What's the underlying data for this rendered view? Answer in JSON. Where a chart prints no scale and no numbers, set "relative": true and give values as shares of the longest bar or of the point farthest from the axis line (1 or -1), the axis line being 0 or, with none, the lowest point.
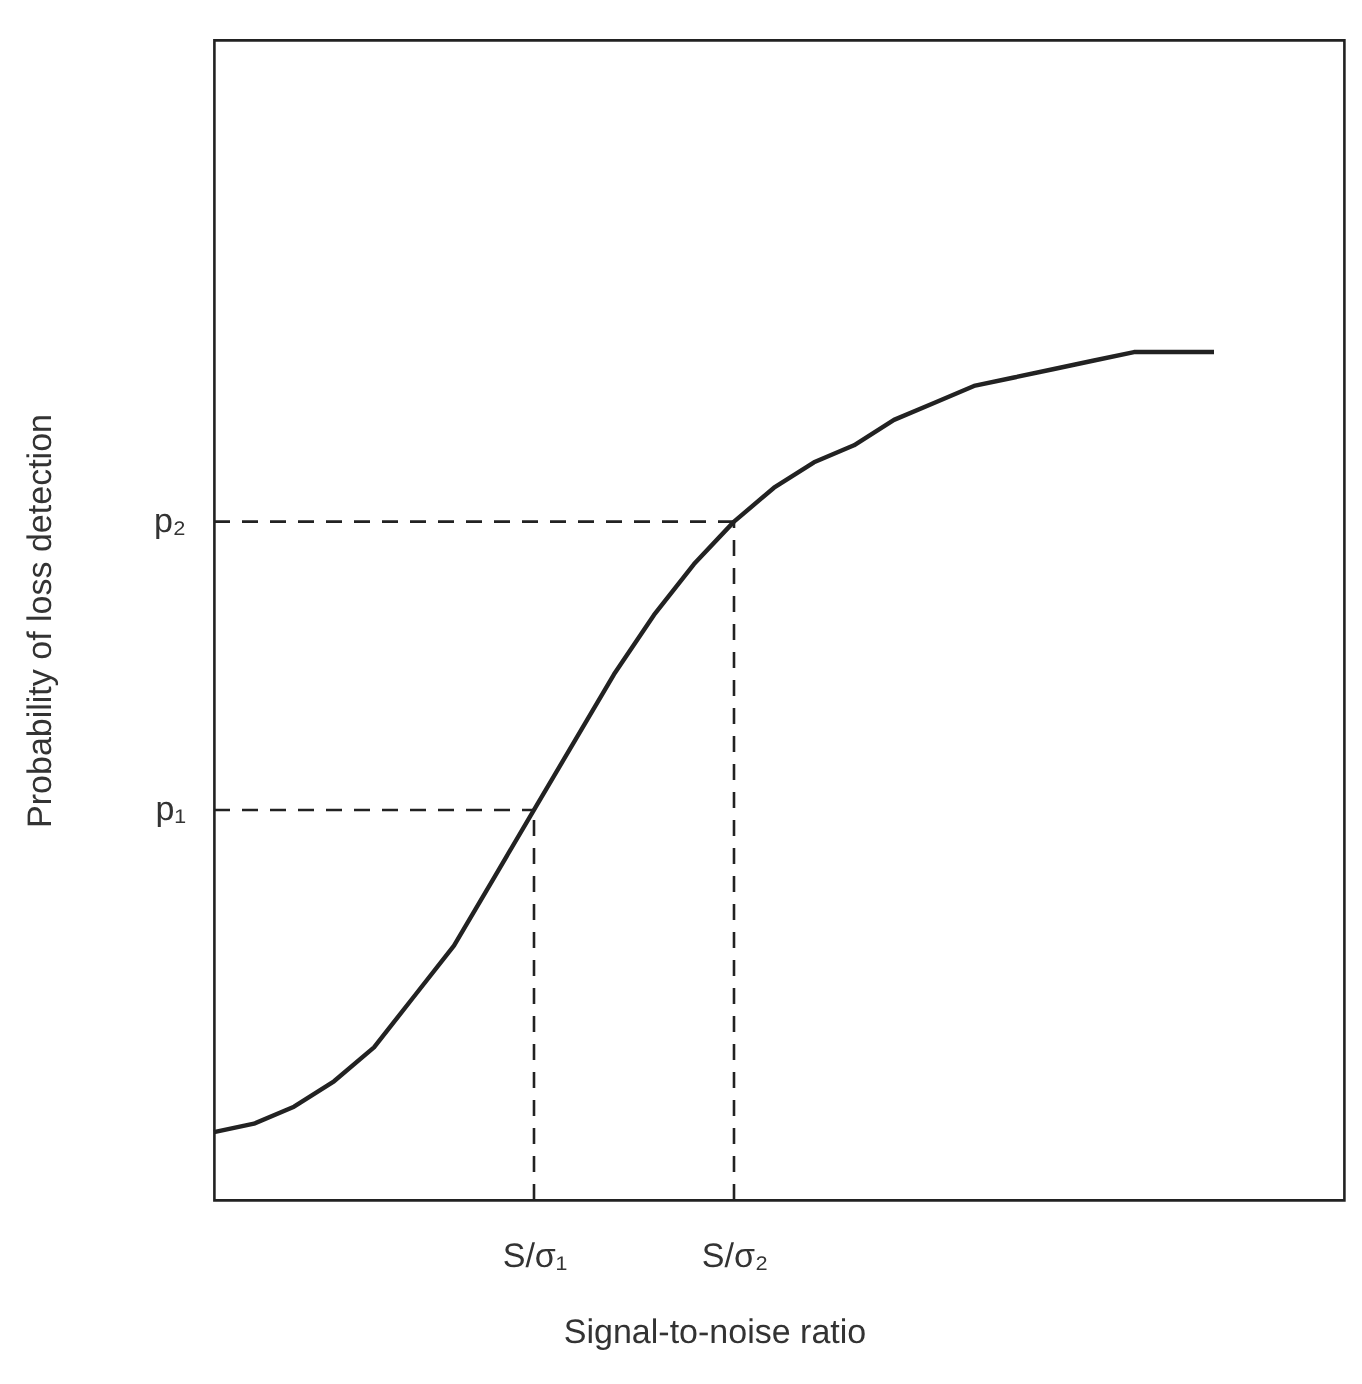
{
  "chart_data": {
    "type": "line",
    "relative": true,
    "xlabel": "Signal-to-noise ratio",
    "ylabel": "Probability of loss detection",
    "categories": [
      null,
      null,
      null,
      null,
      null,
      null,
      null,
      null,
      "S/σ₁",
      null,
      null,
      null,
      null,
      "S/σ₂",
      null,
      null,
      null,
      null,
      null,
      null,
      null,
      null,
      null,
      null,
      null,
      null
    ],
    "series": [
      {
        "color": "#222222",
        "values": [
          0.08,
          0.09,
          0.11,
          0.14,
          0.18,
          0.24,
          0.3,
          0.38,
          0.46,
          0.54,
          0.62,
          0.69,
          0.75,
          0.8,
          0.84,
          0.87,
          0.89,
          0.92,
          0.94,
          0.96,
          0.97,
          0.98,
          0.99,
          1.0,
          1.0,
          1.0
        ]
      }
    ],
    "ref_lines": [
      {
        "axis": "x",
        "value": "S/σ₁",
        "line_style": "dashed",
        "color": "#222222"
      },
      {
        "axis": "x",
        "value": "S/σ₂",
        "line_style": "dashed",
        "color": "#222222"
      },
      {
        "axis": "y",
        "value": 0.46,
        "label": "p₁",
        "line_style": "dashed",
        "color": "#222222"
      },
      {
        "axis": "y",
        "value": 0.8,
        "label": "p₂",
        "line_style": "dashed",
        "color": "#222222"
      }
    ],
    "grid": false,
    "marker": "none",
    "line_style": "solid"
  }
}
